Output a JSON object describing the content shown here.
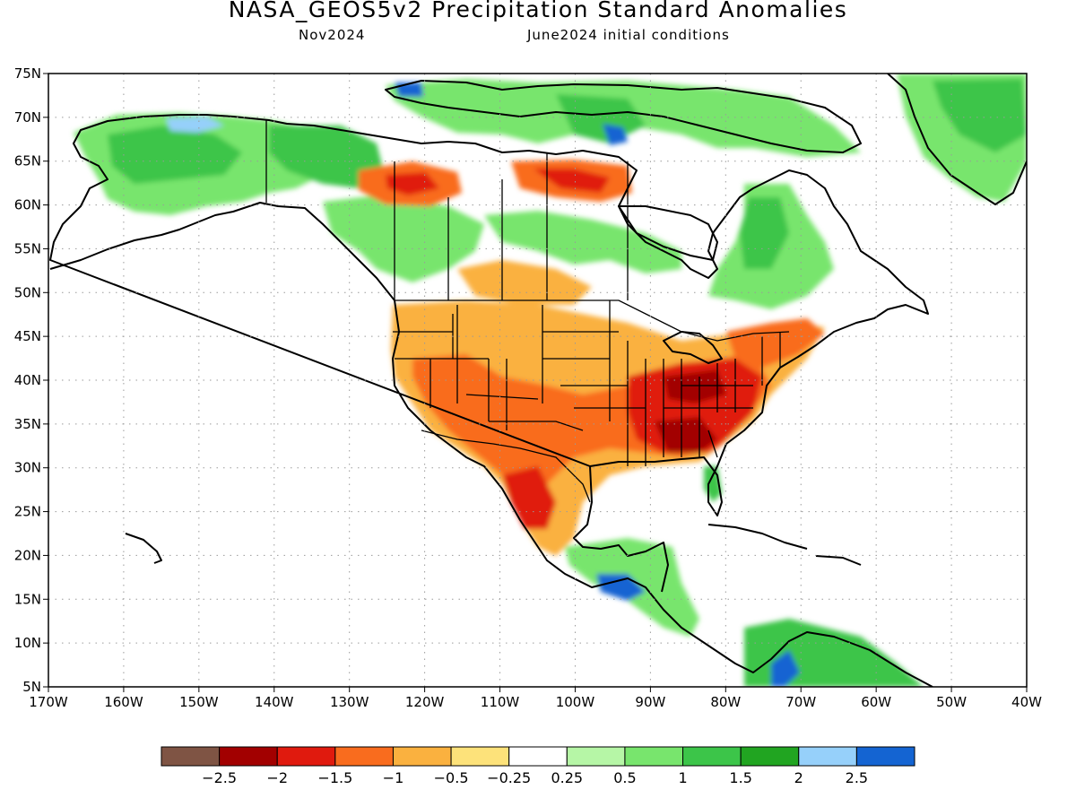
{
  "title": "NASA_GEOS5v2 Precipitation Standard Anomalies",
  "subtitle_left": "Nov2024",
  "subtitle_right": "June2024 initial conditions",
  "map": {
    "lon_labels": [
      "170W",
      "160W",
      "150W",
      "140W",
      "130W",
      "120W",
      "110W",
      "100W",
      "90W",
      "80W",
      "70W",
      "60W",
      "50W",
      "40W"
    ],
    "lat_labels": [
      "75N",
      "70N",
      "65N",
      "60N",
      "55N",
      "50N",
      "45N",
      "40N",
      "35N",
      "30N",
      "25N",
      "20N",
      "15N",
      "10N",
      "5N"
    ],
    "lon_range": [
      -170,
      -40
    ],
    "lat_range": [
      5,
      75
    ],
    "grid": "dotted"
  },
  "colorbar": {
    "colors": [
      "#7f5444",
      "#a20000",
      "#e01a0e",
      "#f96c1e",
      "#fab13f",
      "#fde27a",
      "#ffffff",
      "#b6f6a6",
      "#78e56d",
      "#3cc549",
      "#21a521",
      "#96d0fa",
      "#1464d2"
    ],
    "labels": [
      "-2.5",
      "-2",
      "-1.5",
      "-1",
      "-0.5",
      "-0.25",
      "0.25",
      "0.5",
      "1",
      "1.5",
      "2",
      "2.5"
    ]
  }
}
